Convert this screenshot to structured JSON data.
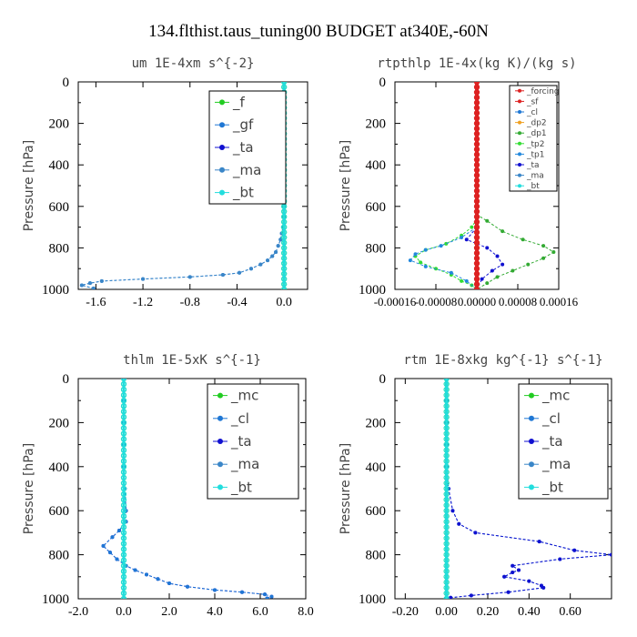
{
  "title": "134.flthist.taus_tuning00  BUDGET at340E,-60N",
  "colors": {
    "_f": "#22cc22",
    "_gf": "#1f77d4",
    "_ta": "#1010d0",
    "_ma": "#3a86c8",
    "_bt": "#22dddd",
    "_mc": "#22cc22",
    "_cl": "#1f77d4",
    "_forcing": "#dd2222",
    "_sf": "#dd2222",
    "_dp2": "#f0a020",
    "_dp1": "#33aa33",
    "_tp2": "#33dd33",
    "_tp1": "#2288dd"
  },
  "chart_data": [
    {
      "type": "line",
      "title": "um  1E-4xm s^{-2}",
      "ylabel": "Pressure [hPa]",
      "xlim": [
        -1.75,
        0.2
      ],
      "ylim": [
        1000,
        0
      ],
      "xticks": [
        "-1.6",
        "-1.2",
        "-0.8",
        "-0.4",
        "0.0"
      ],
      "xtick_values": [
        -1.6,
        -1.2,
        -0.8,
        -0.4,
        0.0
      ],
      "yticks": [
        "0",
        "200",
        "400",
        "600",
        "800",
        "1000"
      ],
      "legend": [
        "_f",
        "_gf",
        "_ta",
        "_ma",
        "_bt"
      ],
      "legend_position": "top-right",
      "series": [
        {
          "name": "_gf",
          "x": [
            0.0,
            0.0,
            0.0,
            0.0,
            0.0,
            0.0,
            0.0,
            0.0,
            -0.01,
            -0.02,
            -0.03,
            -0.05,
            -0.07,
            -0.1,
            -0.14,
            -0.2,
            -0.28,
            -0.38,
            -0.52,
            -0.8,
            -1.2,
            -1.55,
            -1.65,
            -1.72,
            -1.62
          ],
          "p": [
            0,
            100,
            200,
            300,
            400,
            500,
            600,
            650,
            700,
            730,
            760,
            790,
            820,
            840,
            860,
            880,
            900,
            920,
            930,
            940,
            950,
            960,
            970,
            980,
            995
          ]
        },
        {
          "name": "_ma",
          "x": [
            0.0,
            0.0,
            0.0,
            0.0,
            0.0,
            0.0,
            0.0,
            0.0,
            -0.01,
            -0.02,
            -0.03,
            -0.05,
            -0.07,
            -0.1,
            -0.14,
            -0.2,
            -0.28,
            -0.38,
            -0.52,
            -0.8,
            -1.2,
            -1.55,
            -1.65,
            -1.72,
            -1.62
          ],
          "p": [
            0,
            100,
            200,
            300,
            400,
            500,
            600,
            650,
            700,
            730,
            760,
            790,
            820,
            840,
            860,
            880,
            900,
            920,
            930,
            940,
            950,
            960,
            970,
            980,
            995
          ]
        },
        {
          "name": "_f",
          "x": [
            0,
            0
          ],
          "p": [
            0,
            1000
          ]
        },
        {
          "name": "_bt",
          "x": [
            0,
            0
          ],
          "p": [
            0,
            1000
          ]
        }
      ]
    },
    {
      "type": "line",
      "title": "rtpthlp  1E-4x(kg K)/(kg s)",
      "ylabel": "Pressure [hPa]",
      "xlim": [
        -0.00016,
        0.00016
      ],
      "ylim": [
        1000,
        0
      ],
      "xticks": [
        "-0.00016",
        "-0.00008",
        "0.00000",
        "0.00008",
        "0.00016"
      ],
      "xtick_values": [
        -0.00016,
        -8e-05,
        0.0,
        8e-05,
        0.00016
      ],
      "yticks": [
        "0",
        "200",
        "400",
        "600",
        "800",
        "1000"
      ],
      "legend": [
        "_forcing",
        "_sf",
        "_cl",
        "_dp2",
        "_dp1",
        "_tp2",
        "_tp1",
        "_ta",
        "_ma",
        "_bt"
      ],
      "legend_position": "top-right",
      "series": [
        {
          "name": "_tp2",
          "x": [
            0,
            0,
            0,
            -1e-05,
            -3e-05,
            -6e-05,
            -0.0001,
            -0.00012,
            -0.00011,
            -8e-05,
            -5e-05,
            -3e-05,
            -1e-05,
            0
          ],
          "p": [
            0,
            600,
            660,
            700,
            740,
            780,
            810,
            840,
            870,
            900,
            930,
            960,
            980,
            1000
          ]
        },
        {
          "name": "_dp1",
          "x": [
            0,
            0,
            2e-05,
            5e-05,
            9e-05,
            0.00013,
            0.00015,
            0.00013,
            0.0001,
            7e-05,
            4e-05,
            2e-05,
            0
          ],
          "p": [
            0,
            640,
            670,
            720,
            760,
            790,
            820,
            850,
            880,
            910,
            940,
            970,
            1000
          ]
        },
        {
          "name": "_tp1",
          "x": [
            0,
            0,
            -3e-05,
            -7e-05,
            -0.0001,
            -0.00012,
            -0.00013,
            -0.0001,
            -5e-05,
            -2e-05,
            0
          ],
          "p": [
            0,
            700,
            750,
            790,
            810,
            830,
            860,
            890,
            920,
            960,
            1000
          ]
        },
        {
          "name": "_ta",
          "x": [
            0,
            0,
            -2e-05,
            2e-05,
            4e-05,
            5e-05,
            3e-05,
            1e-05,
            0
          ],
          "p": [
            0,
            700,
            760,
            800,
            840,
            880,
            910,
            950,
            1000
          ]
        },
        {
          "name": "_forcing",
          "x": [
            0,
            0
          ],
          "p": [
            0,
            1000
          ]
        },
        {
          "name": "_sf",
          "x": [
            0,
            0
          ],
          "p": [
            0,
            1000
          ]
        }
      ]
    },
    {
      "type": "line",
      "title": "thlm  1E-5xK s^{-1}",
      "ylabel": "Pressure [hPa]",
      "xlim": [
        -2.0,
        8.0
      ],
      "ylim": [
        1000,
        0
      ],
      "xticks": [
        "-2.0",
        "0.0",
        "2.0",
        "4.0",
        "6.0",
        "8.0"
      ],
      "xtick_values": [
        -2.0,
        0.0,
        2.0,
        4.0,
        6.0,
        8.0
      ],
      "yticks": [
        "0",
        "200",
        "400",
        "600",
        "800",
        "1000"
      ],
      "legend": [
        "_mc",
        "_cl",
        "_ta",
        "_ma",
        "_bt"
      ],
      "legend_position": "top-right",
      "series": [
        {
          "name": "_ta",
          "x": [
            0.0,
            0.0,
            0.0,
            0.0,
            0.0,
            0.05,
            0.1,
            0.1,
            -0.2,
            -0.5,
            -0.9,
            -0.6,
            -0.3,
            0.1,
            0.5,
            1.0,
            1.5,
            2.0,
            2.8,
            4.0,
            5.2,
            6.2,
            6.5,
            6.3
          ],
          "p": [
            0,
            100,
            200,
            300,
            400,
            500,
            600,
            650,
            690,
            720,
            760,
            790,
            820,
            850,
            870,
            890,
            910,
            930,
            945,
            960,
            970,
            980,
            990,
            998
          ]
        },
        {
          "name": "_cl",
          "x": [
            0.0,
            0.0,
            0.0,
            0.0,
            0.0,
            0.05,
            0.1,
            0.1,
            -0.2,
            -0.5,
            -0.9,
            -0.6,
            -0.3,
            0.1,
            0.5,
            1.0,
            1.5,
            2.0,
            2.8,
            4.0,
            5.2,
            6.2,
            6.5,
            6.3
          ],
          "p": [
            0,
            100,
            200,
            300,
            400,
            500,
            600,
            650,
            690,
            720,
            760,
            790,
            820,
            850,
            870,
            890,
            910,
            930,
            945,
            960,
            970,
            980,
            990,
            998
          ]
        },
        {
          "name": "_mc",
          "x": [
            0,
            0
          ],
          "p": [
            0,
            1000
          ]
        },
        {
          "name": "_bt",
          "x": [
            0,
            0
          ],
          "p": [
            0,
            1000
          ]
        }
      ]
    },
    {
      "type": "line",
      "title": "rtm  1E-8xkg kg^{-1} s^{-1}",
      "ylabel": "Pressure [hPa]",
      "xlim": [
        -0.25,
        0.8
      ],
      "ylim": [
        1000,
        0
      ],
      "xticks": [
        "-0.20",
        "0.00",
        "0.20",
        "0.40",
        "0.60"
      ],
      "xtick_values": [
        -0.2,
        0.0,
        0.2,
        0.4,
        0.6
      ],
      "yticks": [
        "0",
        "200",
        "400",
        "600",
        "800",
        "1000"
      ],
      "legend": [
        "_mc",
        "_cl",
        "_ta",
        "_ma",
        "_bt"
      ],
      "legend_position": "top-right",
      "series": [
        {
          "name": "_cl",
          "x": [
            0.0,
            0.0,
            0.0,
            0.0,
            0.0,
            0.01,
            0.03,
            0.06,
            0.14,
            0.45,
            0.62,
            0.8,
            0.55,
            0.32,
            0.35,
            0.32,
            0.28,
            0.4,
            0.46,
            0.47,
            0.3,
            0.12,
            0.02,
            0.0
          ],
          "p": [
            0,
            100,
            200,
            300,
            400,
            500,
            600,
            660,
            700,
            740,
            780,
            800,
            820,
            850,
            870,
            880,
            900,
            920,
            940,
            950,
            970,
            985,
            995,
            1000
          ]
        },
        {
          "name": "_ta",
          "x": [
            0.0,
            0.0,
            0.0,
            0.0,
            0.0,
            0.01,
            0.03,
            0.06,
            0.14,
            0.45,
            0.62,
            0.8,
            0.55,
            0.32,
            0.35,
            0.32,
            0.28,
            0.4,
            0.46,
            0.47,
            0.3,
            0.12,
            0.02,
            0.0
          ],
          "p": [
            0,
            100,
            200,
            300,
            400,
            500,
            600,
            660,
            700,
            740,
            780,
            800,
            820,
            850,
            870,
            880,
            900,
            920,
            940,
            950,
            970,
            985,
            995,
            1000
          ]
        },
        {
          "name": "_mc",
          "x": [
            0,
            0
          ],
          "p": [
            0,
            1000
          ]
        },
        {
          "name": "_bt",
          "x": [
            0,
            0
          ],
          "p": [
            0,
            1000
          ]
        }
      ]
    }
  ]
}
